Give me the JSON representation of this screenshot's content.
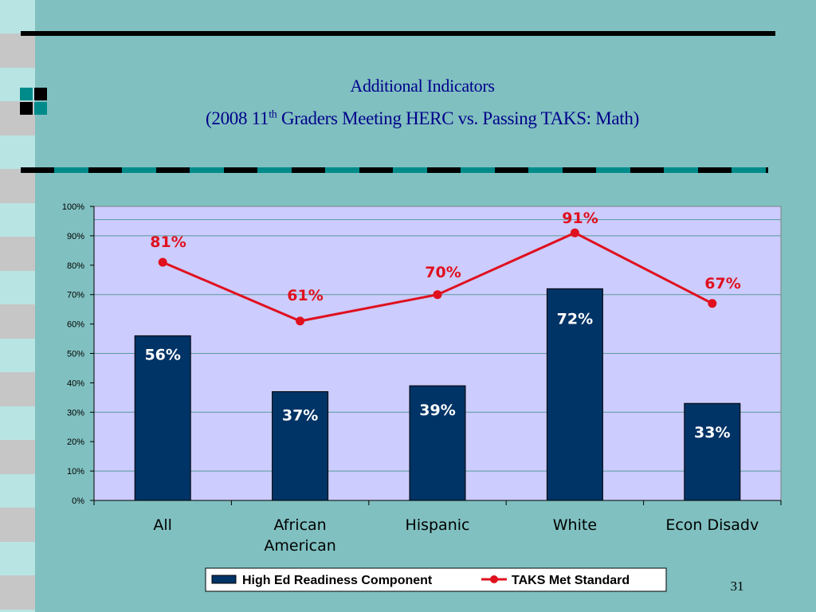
{
  "slide": {
    "title_line1": "Additional Indicators",
    "title_line2_prefix": "(2008 11",
    "title_line2_sup": "th",
    "title_line2_suffix": " Graders Meeting HERC vs. Passing TAKS:  Math)",
    "slide_number": "31",
    "colors": {
      "background": "#80C0C0",
      "title": "#00008B",
      "plot_area": "#CCCCFF",
      "bar": "#003366",
      "line": "#E0101E",
      "teal": "#008B8B"
    }
  },
  "chart_data": {
    "type": "bar",
    "categories": [
      "All",
      "African American",
      "Hispanic",
      "White",
      "Econ Disadv"
    ],
    "category_label_lines": [
      [
        "All"
      ],
      [
        "African",
        "American"
      ],
      [
        "Hispanic"
      ],
      [
        "White"
      ],
      [
        "Econ Disadv"
      ]
    ],
    "series": [
      {
        "name": "High Ed Readiness Component",
        "type": "bar",
        "values": [
          56,
          37,
          39,
          72,
          33
        ],
        "labels": [
          "56%",
          "37%",
          "39%",
          "72%",
          "33%"
        ],
        "color": "#003366"
      },
      {
        "name": "TAKS Met Standard",
        "type": "line",
        "values": [
          81,
          61,
          70,
          91,
          67
        ],
        "labels": [
          "81%",
          "61%",
          "70%",
          "91%",
          "67%"
        ],
        "color": "#E0101E"
      }
    ],
    "ylim": [
      0,
      100
    ],
    "y_ticks": [
      "0%",
      "10%",
      "20%",
      "30%",
      "40%",
      "50%",
      "60%",
      "70%",
      "80%",
      "90%",
      "100%"
    ],
    "grid": true,
    "legend_position": "bottom"
  }
}
